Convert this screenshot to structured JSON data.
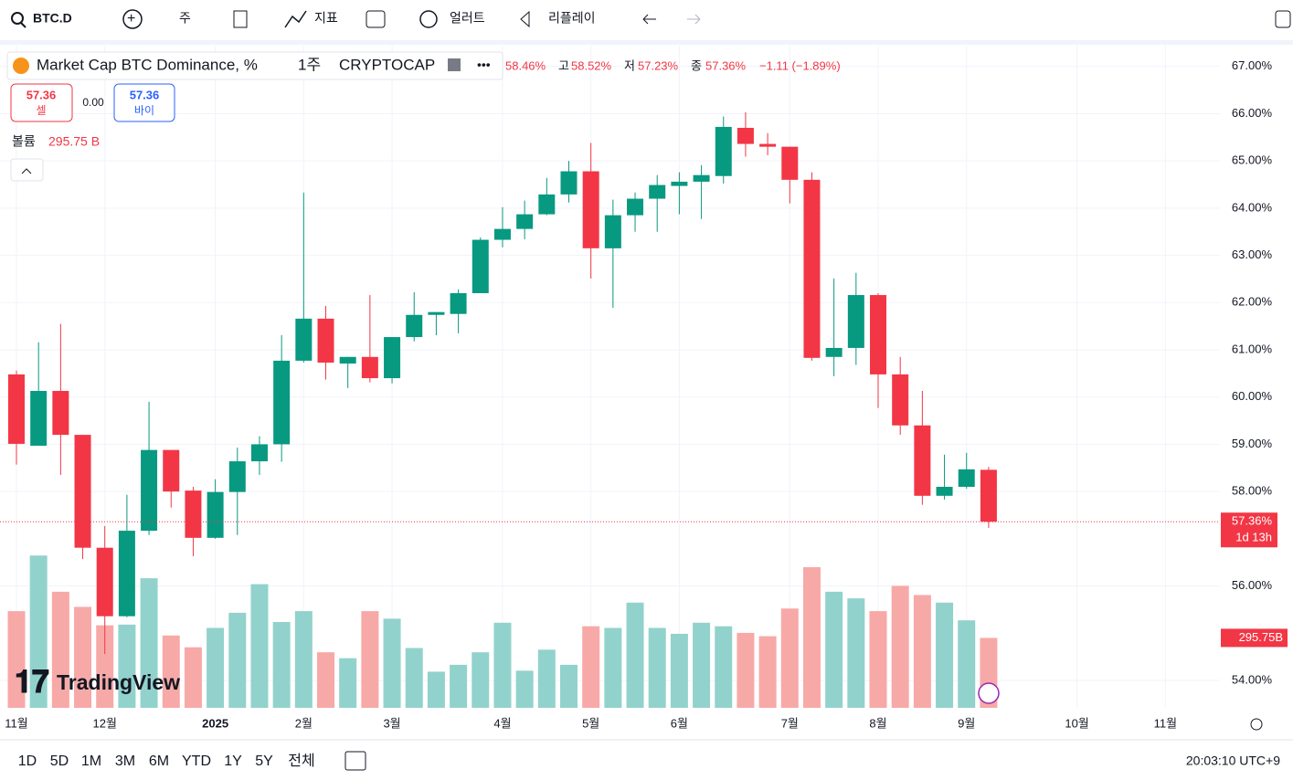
{
  "toolbar": {
    "symbol": "BTC.D",
    "interval": "주",
    "indicators": "지표",
    "alert": "얼러트",
    "replay": "리플레이"
  },
  "legend": {
    "title": "Market Cap BTC Dominance, %",
    "interval": "1주",
    "exchange": "CRYPTOCAP",
    "open": "58.46%",
    "high_label": "고",
    "high": "58.52%",
    "low_label": "저",
    "low": "57.23%",
    "close_label": "종",
    "close": "57.36%",
    "change": "−1.11 (−1.89%)"
  },
  "trade": {
    "sell_price": "57.36",
    "sell": "셀",
    "spread": "0.00",
    "buy_price": "57.36",
    "buy": "바이"
  },
  "volume_legend": {
    "label": "볼륨",
    "value": "295.75 B"
  },
  "chart_data": {
    "type": "candlestick",
    "categories": [
      "11월",
      null,
      null,
      null,
      "12월",
      null,
      null,
      null,
      null,
      "2025",
      null,
      null,
      null,
      "2월",
      null,
      null,
      null,
      "3월",
      null,
      null,
      null,
      null,
      "4월",
      null,
      null,
      null,
      "5월",
      null,
      null,
      null,
      "6월",
      null,
      null,
      null,
      null,
      "7월",
      null,
      null,
      null,
      "8월",
      null,
      null,
      null,
      "9월",
      null,
      null,
      null,
      null,
      "10월",
      null,
      null,
      null,
      "11월",
      null,
      null
    ],
    "open": [
      60.48,
      58.97,
      60.13,
      59.2,
      56.81,
      55.36,
      57.17,
      58.88,
      58.02,
      57.02,
      57.99,
      58.64,
      59.0,
      60.77,
      61.66,
      60.71,
      60.85,
      60.4,
      61.27,
      61.74,
      61.76,
      62.2,
      63.33,
      63.56,
      63.87,
      64.29,
      64.78,
      63.15,
      63.85,
      64.2,
      64.47,
      64.56,
      64.68,
      65.7,
      65.36,
      65.3,
      64.6,
      60.85,
      61.04,
      62.16,
      60.48,
      59.4,
      57.91,
      58.1,
      58.46,
      null,
      null,
      null,
      null,
      null,
      null,
      null,
      null,
      null,
      null
    ],
    "high": [
      60.56,
      61.16,
      61.55,
      59.2,
      57.27,
      57.93,
      59.9,
      58.88,
      58.1,
      58.26,
      58.93,
      59.17,
      61.31,
      64.33,
      61.93,
      60.85,
      62.16,
      61.27,
      62.22,
      61.8,
      62.28,
      63.38,
      64.02,
      64.16,
      64.64,
      65.0,
      65.38,
      64.18,
      64.33,
      64.7,
      64.76,
      64.91,
      65.94,
      66.03,
      65.59,
      65.3,
      64.76,
      62.51,
      62.63,
      62.2,
      60.85,
      60.13,
      58.78,
      58.82,
      58.52,
      null,
      null,
      null,
      null,
      null,
      null,
      null,
      null,
      null,
      null
    ],
    "low": [
      58.57,
      58.97,
      58.35,
      56.57,
      54.56,
      55.34,
      57.08,
      57.66,
      56.63,
      57.0,
      57.08,
      58.35,
      58.63,
      60.73,
      60.37,
      60.19,
      60.31,
      60.29,
      61.18,
      61.31,
      61.35,
      62.2,
      63.17,
      63.34,
      63.85,
      64.12,
      62.51,
      61.89,
      63.5,
      63.5,
      63.87,
      63.77,
      64.52,
      65.09,
      65.12,
      64.1,
      60.77,
      60.44,
      60.68,
      59.77,
      59.2,
      57.72,
      57.83,
      58.06,
      57.23,
      null,
      null,
      null,
      null,
      null,
      null,
      null,
      null,
      null,
      null
    ],
    "close": [
      59.01,
      60.13,
      59.2,
      56.81,
      55.36,
      57.17,
      58.88,
      58.0,
      57.02,
      57.99,
      58.64,
      59.0,
      60.77,
      61.66,
      60.73,
      60.85,
      60.4,
      61.27,
      61.74,
      61.8,
      62.2,
      63.33,
      63.56,
      63.87,
      64.29,
      64.78,
      63.15,
      63.85,
      64.2,
      64.49,
      64.56,
      64.7,
      65.72,
      65.36,
      65.3,
      64.6,
      60.83,
      61.04,
      62.16,
      60.48,
      59.4,
      57.91,
      58.1,
      58.47,
      57.36,
      null,
      null,
      null,
      null,
      null,
      null,
      null,
      null,
      null,
      null
    ],
    "volume": [
      409,
      644,
      491,
      427,
      349,
      352,
      548,
      306,
      256,
      338,
      402,
      523,
      363,
      409,
      235,
      210,
      409,
      377,
      253,
      153,
      182,
      235,
      360,
      157,
      246,
      182,
      345,
      338,
      445,
      338,
      313,
      360,
      345,
      317,
      303,
      420,
      595,
      491,
      463,
      409,
      516,
      477,
      445,
      370,
      295.75,
      null,
      null,
      null,
      null,
      null,
      null,
      null,
      null,
      null,
      null
    ],
    "up_color": "#089981",
    "down_color": "#f23645",
    "up_volume_color": "#92d2cc",
    "down_volume_color": "#f7a9a7",
    "ylim": [
      53.42,
      67.44
    ],
    "yticks": [
      {
        "value": 67,
        "label": "67.00%"
      },
      {
        "value": 66,
        "label": "66.00%"
      },
      {
        "value": 65,
        "label": "65.00%"
      },
      {
        "value": 64,
        "label": "64.00%"
      },
      {
        "value": 63,
        "label": "63.00%"
      },
      {
        "value": 62,
        "label": "62.00%"
      },
      {
        "value": 61,
        "label": "61.00%"
      },
      {
        "value": 60,
        "label": "60.00%"
      },
      {
        "value": 59,
        "label": "59.00%"
      },
      {
        "value": 58,
        "label": "58.00%"
      },
      {
        "value": 56,
        "label": "56.00%"
      },
      {
        "value": 54,
        "label": "54.00%"
      }
    ],
    "grid": true,
    "last_price_label": "57.36%",
    "countdown": "1d 13h",
    "volume_badge": "295.75B"
  },
  "watermark": "TradingView",
  "ranges": [
    "1D",
    "5D",
    "1M",
    "3M",
    "6M",
    "YTD",
    "1Y",
    "5Y",
    "전체"
  ],
  "clock": "20:03:10 UTC+9"
}
